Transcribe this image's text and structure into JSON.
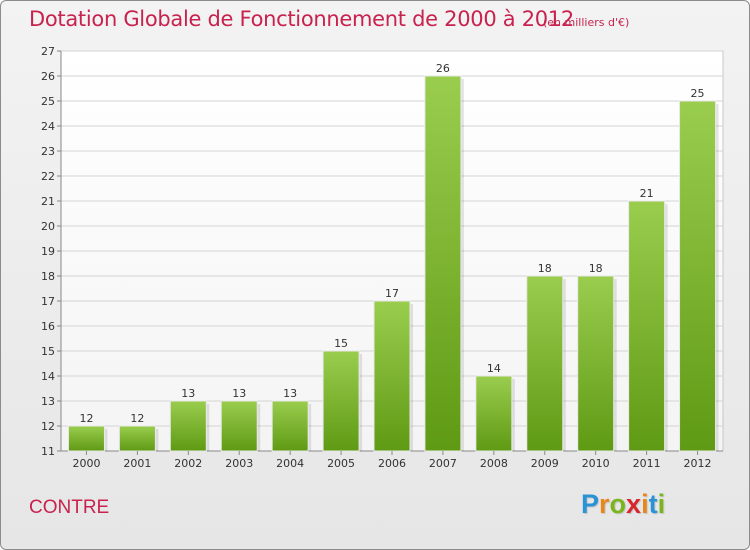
{
  "header": {
    "title": "Dotation Globale de Fonctionnement de 2000 à 2012",
    "unit": "(en milliers d'€)"
  },
  "footer": {
    "commune": "CONTRE",
    "logo_letters": [
      "P",
      "r",
      "o",
      "x",
      "i",
      "t",
      "i"
    ],
    "logo_colors": [
      "#2a93d6",
      "#e8861c",
      "#7bb51e",
      "#d9262c",
      "#e8861c",
      "#2a93d6",
      "#7bb51e"
    ]
  },
  "colors": {
    "bar_top": "#9acd4e",
    "bar_bottom": "#5f9a14",
    "grid": "#d4d4d4",
    "accent": "#c8224e"
  },
  "chart_data": {
    "type": "bar",
    "title": "Dotation Globale de Fonctionnement de 2000 à 2012",
    "subtitle": "(en milliers d'€)",
    "xlabel": "",
    "ylabel": "",
    "categories": [
      "2000",
      "2001",
      "2002",
      "2003",
      "2004",
      "2005",
      "2006",
      "2007",
      "2008",
      "2009",
      "2010",
      "2011",
      "2012"
    ],
    "values": [
      12,
      12,
      13,
      13,
      13,
      15,
      17,
      26,
      14,
      18,
      18,
      21,
      25
    ],
    "ylim": [
      11,
      27
    ],
    "yticks": [
      11,
      12,
      13,
      14,
      15,
      16,
      17,
      18,
      19,
      20,
      21,
      22,
      23,
      24,
      25,
      26,
      27
    ],
    "grid": true,
    "legend": "none"
  }
}
